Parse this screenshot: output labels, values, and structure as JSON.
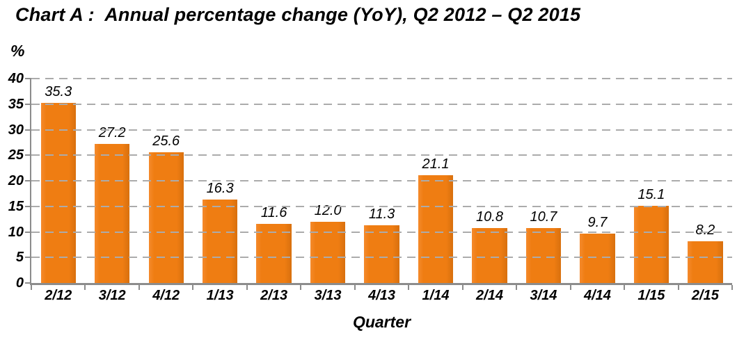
{
  "chart_data": {
    "type": "bar",
    "title": "Chart A :  Annual percentage change (YoY), Q2 2012 – Q2 2015",
    "categories": [
      "2/12",
      "3/12",
      "4/12",
      "1/13",
      "2/13",
      "3/13",
      "4/13",
      "1/14",
      "2/14",
      "3/14",
      "4/14",
      "1/15",
      "2/15"
    ],
    "values": [
      35.3,
      27.2,
      25.6,
      16.3,
      11.6,
      12.0,
      11.3,
      21.1,
      10.8,
      10.7,
      9.7,
      15.1,
      8.2
    ],
    "value_label_texts": [
      "35.3",
      "27.2",
      "25.6",
      "16.3",
      "11.6",
      "12.0",
      "11.3",
      "21.1",
      "10.8",
      "10.7",
      "9.7",
      "15.1",
      "8.2"
    ],
    "xlabel": "Quarter",
    "ylabel": "%",
    "ylim": [
      0,
      40
    ],
    "yticks": [
      0,
      5,
      10,
      15,
      20,
      25,
      30,
      35,
      40
    ],
    "grid": "horizontal-dashed",
    "legend": "none",
    "series_name": "Annual percentage change (YoY)"
  },
  "colors": {
    "bar": "#EF7D12",
    "bar_edge_light": "#F58A2C",
    "bar_edge_dark": "#D8700E",
    "gridline": "#ABABAB",
    "axis": "#8C8C8C",
    "text": "#000000"
  }
}
